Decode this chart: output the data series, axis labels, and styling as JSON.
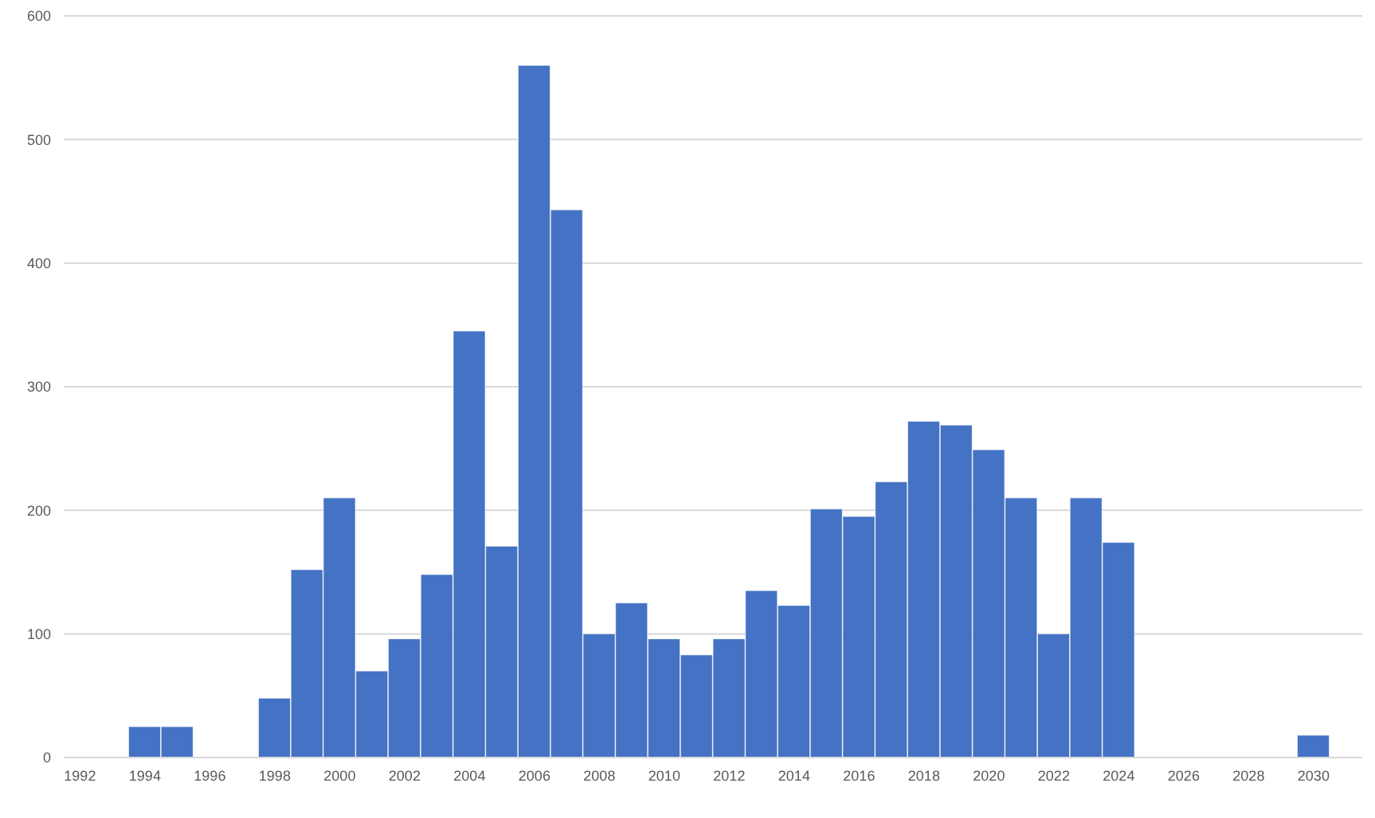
{
  "chart_data": {
    "type": "bar",
    "categories": [
      "1992",
      null,
      "1994",
      null,
      "1996",
      null,
      "1998",
      null,
      "2000",
      null,
      "2002",
      null,
      "2004",
      null,
      "2006",
      null,
      "2008",
      null,
      "2010",
      null,
      "2012",
      null,
      "2014",
      null,
      "2016",
      null,
      "2018",
      null,
      "2020",
      null,
      "2022",
      null,
      "2024",
      null,
      "2026",
      null,
      "2028",
      null,
      "2030",
      null
    ],
    "values": [
      0,
      0,
      25,
      25,
      0,
      0,
      48,
      152,
      210,
      70,
      96,
      148,
      345,
      171,
      560,
      443,
      100,
      125,
      96,
      83,
      96,
      135,
      123,
      201,
      195,
      223,
      272,
      269,
      249,
      210,
      100,
      210,
      174,
      0,
      0,
      0,
      0,
      0,
      18,
      0
    ],
    "color": "#4472c4",
    "ylim": [
      0,
      600
    ],
    "yticks": [
      0,
      100,
      200,
      300,
      400,
      500,
      600
    ],
    "grid": "y"
  }
}
